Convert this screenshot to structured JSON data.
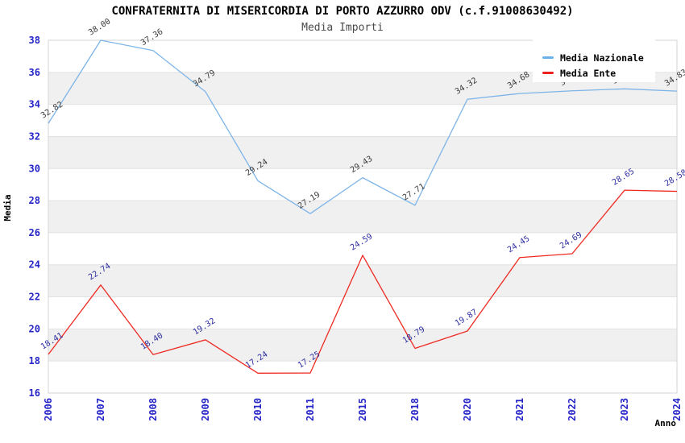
{
  "title": "CONFRATERNITA DI MISERICORDIA DI PORTO AZZURRO ODV (c.f.91008630492)",
  "subtitle": "Media Importi",
  "legend": {
    "position": "top-right",
    "items": [
      {
        "label": "Media Nazionale",
        "color": "#6cb0e8"
      },
      {
        "label": "Media Ente",
        "color": "#ee1f1f"
      }
    ]
  },
  "chart_data": {
    "type": "line",
    "categories": [
      "2006",
      "2007",
      "2008",
      "2009",
      "2010",
      "2011",
      "2015",
      "2018",
      "2020",
      "2021",
      "2022",
      "2023",
      "2024"
    ],
    "series": [
      {
        "name": "Media Nazionale",
        "color": "#7db4e8",
        "label_color": "#3c3c3c",
        "values": [
          32.82,
          38.0,
          37.36,
          34.79,
          29.24,
          27.19,
          29.43,
          27.71,
          34.32,
          34.68,
          34.85,
          34.97,
          34.83
        ],
        "labels": [
          "32.82",
          "38.00",
          "37.36",
          "34.79",
          "29.24",
          "27.19",
          "29.43",
          "27.71",
          "34.32",
          "34.68",
          "34.85",
          "34.97",
          "34.83"
        ]
      },
      {
        "name": "Media Ente",
        "color": "#ee2a21",
        "label_color": "#2e2ea2",
        "values": [
          18.41,
          22.74,
          18.4,
          19.32,
          17.24,
          17.25,
          24.59,
          18.79,
          19.87,
          24.45,
          24.69,
          28.65,
          28.58
        ],
        "labels": [
          "18.41",
          "22.74",
          "18.40",
          "19.32",
          "17.24",
          "17.25",
          "24.59",
          "18.79",
          "19.87",
          "24.45",
          "24.69",
          "28.65",
          "28.58"
        ]
      }
    ],
    "xlabel": "Anno",
    "ylabel": "Media",
    "ylim": [
      16,
      38
    ],
    "yticks": [
      16,
      18,
      20,
      22,
      24,
      26,
      28,
      30,
      32,
      34,
      36,
      38
    ],
    "grid": "horizontal-bands",
    "gray_bands": [
      [
        18,
        20
      ],
      [
        22,
        24
      ],
      [
        26,
        28
      ],
      [
        30,
        32
      ],
      [
        34,
        36
      ]
    ],
    "legend_position": "top-right",
    "colors": {
      "tick_label": "#2525c8",
      "band_fill": "#f0f0f0",
      "gridline": "#e2e2e2",
      "plot_border": "#d6d6d6",
      "axis_title": "#000000"
    }
  }
}
